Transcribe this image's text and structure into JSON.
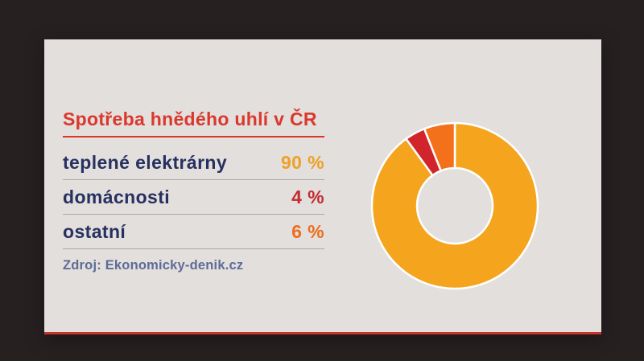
{
  "card": {
    "title": "Spotřeba hnědého uhlí v ČR",
    "rows": [
      {
        "label": "teplené elektrárny",
        "value": "90 %",
        "value_color": "#efa026"
      },
      {
        "label": "domácnosti",
        "value": "4 %",
        "value_color": "#c42a31"
      },
      {
        "label": "ostatní",
        "value": "6 %",
        "value_color": "#ee6d1f"
      }
    ],
    "source": "Zdroj: Ekonomicky-denik.cz"
  },
  "chart_data": {
    "type": "pie",
    "donut": true,
    "title": "Spotřeba hnědého uhlí v ČR",
    "categories": [
      "teplené elektrárny",
      "domácnosti",
      "ostatní"
    ],
    "values": [
      90,
      4,
      6
    ],
    "unit": "%",
    "colors": [
      "#f5a41e",
      "#d2252b",
      "#f4711c"
    ],
    "start_angle_deg": 0,
    "clockwise": true,
    "inner_radius_ratio": 0.456,
    "slice_gap_color": "#ffffff",
    "legend_position": "none"
  },
  "theme": {
    "title_color": "#da382d",
    "title_rule_color": "#d8362b",
    "label_color": "#273060",
    "divider_color": "#a9a9a9",
    "source_color": "#5e6c96",
    "card_bottom_border": "#c5342a",
    "card_background": "#ECEAE7"
  }
}
